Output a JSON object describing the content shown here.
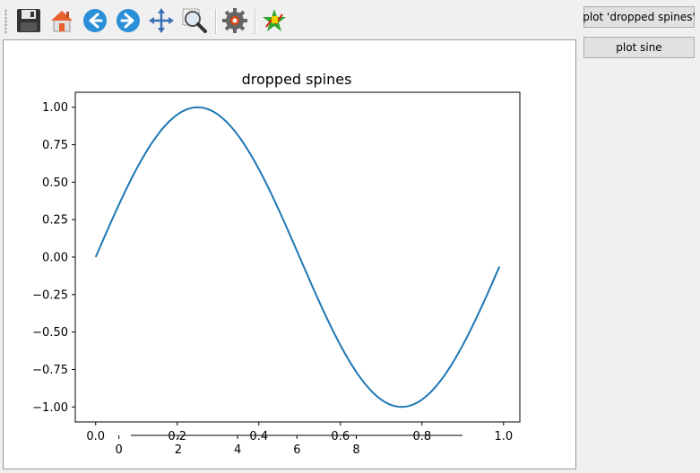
{
  "toolbar": {
    "icons": [
      "save-icon",
      "home-icon",
      "back-icon",
      "forward-icon",
      "pan-icon",
      "zoom-icon",
      "configure-subplots-icon",
      "edit-parameters-icon"
    ]
  },
  "side_buttons": {
    "plot_dropped": "plot 'dropped spines'",
    "plot_sine": "plot sine"
  },
  "colors": {
    "line": "#1f77b4",
    "button_bg": "#e1e1e1",
    "window_bg": "#f0f0f0"
  },
  "chart_data": {
    "type": "line",
    "title": "dropped spines",
    "xlabel": "",
    "ylabel": "",
    "xlim": [
      -0.05,
      1.04
    ],
    "ylim": [
      -1.1,
      1.1
    ],
    "series": [
      {
        "function": "sin(2*pi*x)",
        "x_start": 0.0,
        "x_end": 0.99,
        "x_step": 0.01
      }
    ],
    "x_ticks": [
      "0.0",
      "0.2",
      "0.4",
      "0.6",
      "0.8",
      "1.0"
    ],
    "x_tick_values": [
      0.0,
      0.2,
      0.4,
      0.6,
      0.8,
      1.0
    ],
    "y_ticks": [
      "1.00",
      "0.75",
      "0.50",
      "0.25",
      "0.00",
      "−0.25",
      "−0.50",
      "−0.75",
      "−1.00"
    ],
    "y_tick_values": [
      1.0,
      0.75,
      0.5,
      0.25,
      0.0,
      -0.25,
      -0.5,
      -0.75,
      -1.0
    ],
    "secondary_x_ticks": [
      "0",
      "2",
      "4",
      "6",
      "8"
    ],
    "secondary_x_tick_values": [
      0,
      2,
      4,
      6,
      8
    ],
    "secondary_xlim": [
      -1.47,
      13.51
    ],
    "grid": false
  }
}
